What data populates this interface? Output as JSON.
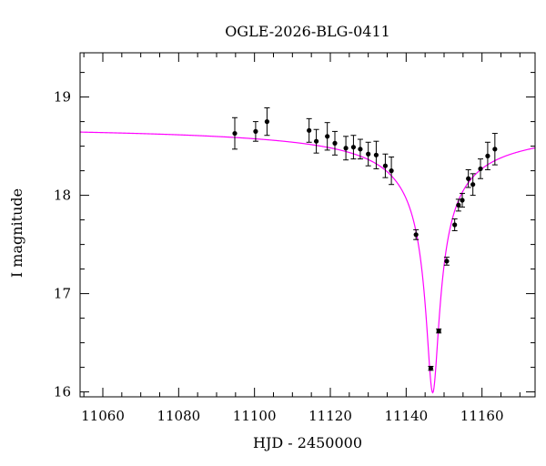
{
  "chart_data": {
    "type": "scatter",
    "title": "OGLE-2026-BLG-0411",
    "xlabel": "HJD - 2450000",
    "ylabel": "I magnitude",
    "xlim": [
      11054,
      11174
    ],
    "ylim": [
      19.45,
      15.95
    ],
    "y_inverted": true,
    "grid": false,
    "xticks": [
      11060,
      11080,
      11100,
      11120,
      11140,
      11160
    ],
    "xtick_labels": [
      "11060",
      "11080",
      "11100",
      "11120",
      "11140",
      "11160"
    ],
    "yticks": [
      16,
      17,
      18,
      19
    ],
    "ytick_labels": [
      "16",
      "17",
      "18",
      "19"
    ],
    "series": [
      {
        "kind": "points-with-errorbars",
        "color": "#000000",
        "points": [
          {
            "x": 11094.8,
            "y": 18.63,
            "err": 0.16
          },
          {
            "x": 11100.3,
            "y": 18.65,
            "err": 0.1
          },
          {
            "x": 11103.3,
            "y": 18.75,
            "err": 0.14
          },
          {
            "x": 11114.4,
            "y": 18.66,
            "err": 0.12
          },
          {
            "x": 11116.3,
            "y": 18.55,
            "err": 0.12
          },
          {
            "x": 11119.2,
            "y": 18.6,
            "err": 0.14
          },
          {
            "x": 11121.2,
            "y": 18.53,
            "err": 0.12
          },
          {
            "x": 11124.1,
            "y": 18.48,
            "err": 0.12
          },
          {
            "x": 11126.1,
            "y": 18.49,
            "err": 0.12
          },
          {
            "x": 11127.9,
            "y": 18.47,
            "err": 0.1
          },
          {
            "x": 11130.0,
            "y": 18.42,
            "err": 0.12
          },
          {
            "x": 11132.1,
            "y": 18.41,
            "err": 0.14
          },
          {
            "x": 11134.5,
            "y": 18.3,
            "err": 0.12
          },
          {
            "x": 11136.1,
            "y": 18.25,
            "err": 0.14
          },
          {
            "x": 11142.6,
            "y": 17.6,
            "err": 0.05
          },
          {
            "x": 11146.5,
            "y": 16.24,
            "err": 0.02
          },
          {
            "x": 11148.6,
            "y": 16.62,
            "err": 0.02
          },
          {
            "x": 11150.7,
            "y": 17.33,
            "err": 0.04
          },
          {
            "x": 11152.8,
            "y": 17.7,
            "err": 0.06
          },
          {
            "x": 11153.8,
            "y": 17.9,
            "err": 0.06
          },
          {
            "x": 11154.8,
            "y": 17.95,
            "err": 0.07
          },
          {
            "x": 11156.4,
            "y": 18.17,
            "err": 0.09
          },
          {
            "x": 11157.6,
            "y": 18.11,
            "err": 0.11
          },
          {
            "x": 11159.6,
            "y": 18.27,
            "err": 0.1
          },
          {
            "x": 11161.5,
            "y": 18.4,
            "err": 0.14
          },
          {
            "x": 11163.4,
            "y": 18.47,
            "err": 0.16
          }
        ]
      },
      {
        "kind": "model-curve",
        "color": "#ff00ff",
        "model": {
          "t0": 11147.0,
          "baseline": 18.73,
          "peak_amp": 2.738,
          "width": 1.6,
          "exponent": 0.85
        }
      }
    ]
  }
}
